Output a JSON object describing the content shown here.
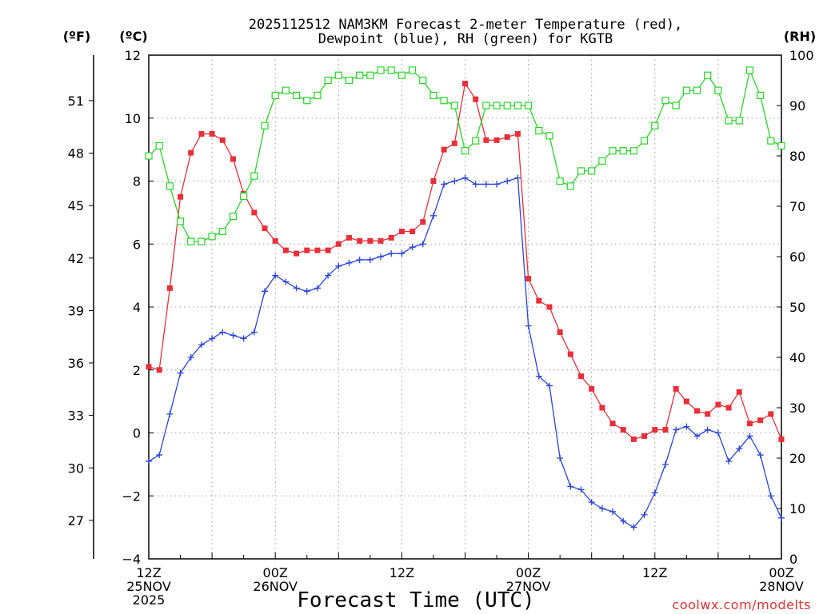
{
  "chart_data": {
    "type": "line",
    "title_line1": "2025112512 NAM3KM Forecast 2-meter Temperature (red),",
    "title_line2": "Dewpoint (blue), RH (green) for KGTB",
    "xlabel": "Forecast Time (UTC)",
    "credit": "coolwx.com/modelts",
    "grid": true,
    "units": {
      "fahrenheit": "(ºF)",
      "celsius": "(ºC)",
      "rh": "(RH)"
    },
    "x_hours": [
      0,
      1,
      2,
      3,
      4,
      5,
      6,
      7,
      8,
      9,
      10,
      11,
      12,
      13,
      14,
      15,
      16,
      17,
      18,
      19,
      20,
      21,
      22,
      23,
      24,
      25,
      26,
      27,
      28,
      29,
      30,
      31,
      32,
      33,
      34,
      35,
      36,
      37,
      38,
      39,
      40,
      41,
      42,
      43,
      44,
      45,
      46,
      47,
      48,
      49,
      50,
      51,
      52,
      53,
      54,
      55,
      56,
      57,
      58,
      59,
      60
    ],
    "xlim": [
      0,
      60
    ],
    "x_ticks": [
      {
        "hour": 0,
        "lines": [
          "12Z",
          "25NOV",
          "2025"
        ]
      },
      {
        "hour": 12,
        "lines": [
          "00Z",
          "26NOV"
        ]
      },
      {
        "hour": 24,
        "lines": [
          "12Z",
          ""
        ]
      },
      {
        "hour": 36,
        "lines": [
          "00Z",
          "27NOV"
        ]
      },
      {
        "hour": 48,
        "lines": [
          "12Z",
          ""
        ]
      },
      {
        "hour": 60,
        "lines": [
          "00Z",
          "28NOV"
        ]
      }
    ],
    "left_axis_c": {
      "label": "(ºC)",
      "ylim": [
        -4,
        12
      ],
      "ticks": [
        -4,
        -2,
        0,
        2,
        4,
        6,
        8,
        10,
        12
      ]
    },
    "left_axis_f": {
      "label": "(ºF)",
      "ticks": [
        27,
        30,
        33,
        36,
        39,
        42,
        45,
        48,
        51
      ]
    },
    "right_axis_rh": {
      "label": "(RH)",
      "ylim": [
        0,
        100
      ],
      "ticks": [
        0,
        10,
        20,
        30,
        40,
        50,
        60,
        70,
        80,
        90,
        100
      ]
    },
    "series": [
      {
        "name": "2-meter Temperature",
        "color": "#e8303a",
        "marker": "filled-square",
        "axis": "celsius",
        "values": [
          2.1,
          2.0,
          4.6,
          7.5,
          8.9,
          9.5,
          9.5,
          9.3,
          8.7,
          7.6,
          7.0,
          6.5,
          6.1,
          5.8,
          5.7,
          5.8,
          5.8,
          5.8,
          6.0,
          6.2,
          6.1,
          6.1,
          6.1,
          6.2,
          6.4,
          6.4,
          6.7,
          8.0,
          9.0,
          9.2,
          11.1,
          10.6,
          9.3,
          9.3,
          9.4,
          9.5,
          4.9,
          4.2,
          4.0,
          3.2,
          2.5,
          1.8,
          1.4,
          0.8,
          0.3,
          0.1,
          -0.2,
          -0.1,
          0.1,
          0.1,
          1.4,
          1.0,
          0.7,
          0.6,
          0.9,
          0.8,
          1.3,
          0.3,
          0.4,
          0.6,
          -0.2
        ]
      },
      {
        "name": "Dewpoint",
        "color": "#2a45d8",
        "marker": "plus",
        "axis": "celsius",
        "values": [
          -0.9,
          -0.7,
          0.6,
          1.9,
          2.4,
          2.8,
          3.0,
          3.2,
          3.1,
          3.0,
          3.2,
          4.5,
          5.0,
          4.8,
          4.6,
          4.5,
          4.6,
          5.0,
          5.3,
          5.4,
          5.5,
          5.5,
          5.6,
          5.7,
          5.7,
          5.9,
          6.0,
          6.9,
          7.9,
          8.0,
          8.1,
          7.9,
          7.9,
          7.9,
          8.0,
          8.1,
          3.4,
          1.8,
          1.5,
          -0.8,
          -1.7,
          -1.8,
          -2.2,
          -2.4,
          -2.5,
          -2.8,
          -3.0,
          -2.6,
          -1.9,
          -1.0,
          0.1,
          0.2,
          -0.1,
          0.1,
          0.0,
          -0.9,
          -0.5,
          -0.1,
          -0.7,
          -2.0,
          -2.7
        ]
      },
      {
        "name": "RH",
        "color": "#2ad42a",
        "marker": "open-square",
        "axis": "rh",
        "values": [
          80,
          82,
          74,
          67,
          63,
          63,
          64,
          65,
          68,
          72,
          76,
          86,
          92,
          93,
          92,
          91,
          92,
          95,
          96,
          95,
          96,
          96,
          97,
          97,
          96,
          97,
          95,
          92,
          91,
          90,
          81,
          83,
          90,
          90,
          90,
          90,
          90,
          85,
          84,
          75,
          74,
          77,
          77,
          79,
          81,
          81,
          81,
          83,
          86,
          91,
          90,
          93,
          93,
          96,
          93,
          87,
          87,
          97,
          92,
          83,
          82
        ]
      }
    ]
  }
}
